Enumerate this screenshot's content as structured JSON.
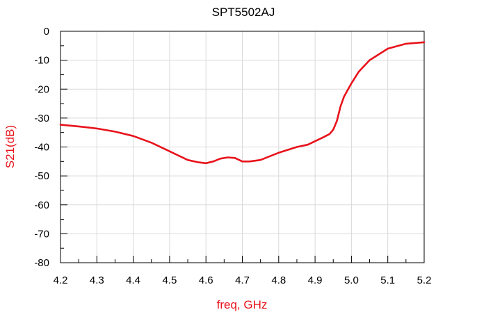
{
  "chart_data": {
    "type": "line",
    "title": "SPT5502AJ",
    "xlabel": "freq, GHz",
    "ylabel": "S21(dB)",
    "xlim": [
      4.2,
      5.2
    ],
    "ylim": [
      -80,
      0
    ],
    "x_ticks": [
      "4.2",
      "4.3",
      "4.4",
      "4.5",
      "4.6",
      "4.7",
      "4.8",
      "4.9",
      "5.0",
      "5.1",
      "5.2"
    ],
    "y_ticks": [
      "0",
      "-10",
      "-20",
      "-30",
      "-40",
      "-50",
      "-60",
      "-70",
      "-80"
    ],
    "grid": true,
    "colors": {
      "series": "#e8121b",
      "axis_label": "#e8121b",
      "grid": "#d9d9d9",
      "frame": "#000000"
    },
    "series": [
      {
        "x": [
          4.2,
          4.25,
          4.3,
          4.35,
          4.4,
          4.45,
          4.5,
          4.55,
          4.58,
          4.6,
          4.62,
          4.64,
          4.66,
          4.68,
          4.7,
          4.72,
          4.75,
          4.8,
          4.85,
          4.88,
          4.9,
          4.92,
          4.94,
          4.95,
          4.96,
          4.97,
          4.98,
          5.0,
          5.02,
          5.05,
          5.1,
          5.15,
          5.2
        ],
        "y": [
          -32.3,
          -32.9,
          -33.6,
          -34.7,
          -36.2,
          -38.5,
          -41.5,
          -44.5,
          -45.3,
          -45.6,
          -45.0,
          -44.0,
          -43.6,
          -43.8,
          -45.0,
          -45.0,
          -44.5,
          -42.0,
          -40.0,
          -39.2,
          -38.0,
          -36.8,
          -35.5,
          -34.0,
          -31.0,
          -26.0,
          -22.5,
          -18.0,
          -14.0,
          -10.0,
          -6.0,
          -4.3,
          -3.8
        ]
      }
    ]
  }
}
